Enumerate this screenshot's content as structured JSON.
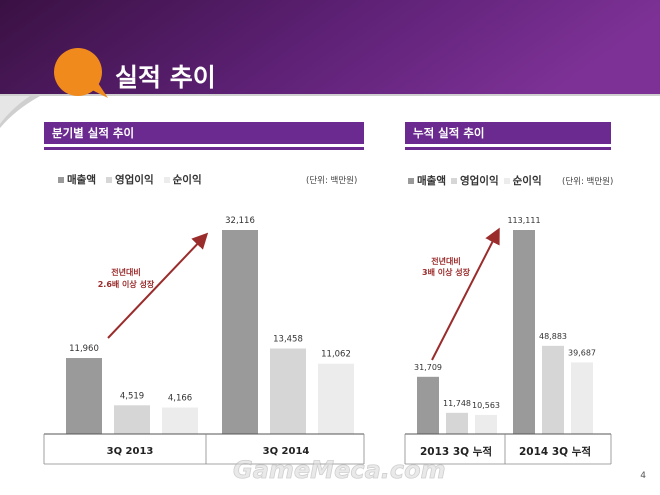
{
  "page": {
    "title": "실적 추이",
    "page_number": "4",
    "watermark": "GameMeca.com"
  },
  "colors": {
    "header_top": "#3d1245",
    "header_bottom": "#7a2f92",
    "accent_purple": "#6b2a8f",
    "orange": "#f08a1c",
    "arrow_red": "#9b2c2c",
    "revenue": "#9a9a9a",
    "operating_profit": "#d6d6d6",
    "net_profit": "#ececec"
  },
  "sections": [
    {
      "title": "분기별 실적 추이",
      "legend": [
        "매출액",
        "영업이익",
        "순이익"
      ],
      "unit": "(단위: 백만원)",
      "annotation": [
        "전년대비",
        "2.6배 이상 성장"
      ]
    },
    {
      "title": "누적 실적 추이",
      "legend": [
        "매출액",
        "영업이익",
        "순이익"
      ],
      "unit": "(단위: 백만원)",
      "annotation": [
        "전년대비",
        "3배 이상 성장"
      ]
    }
  ],
  "chart_data": [
    {
      "type": "bar",
      "title": "분기별 실적 추이",
      "categories": [
        "3Q 2013",
        "3Q 2014"
      ],
      "series": [
        {
          "name": "매출액",
          "values": [
            11960,
            32116
          ],
          "labels": [
            "11,960",
            "32,116"
          ]
        },
        {
          "name": "영업이익",
          "values": [
            4519,
            13458
          ],
          "labels": [
            "4,519",
            "13,458"
          ]
        },
        {
          "name": "순이익",
          "values": [
            4166,
            11062
          ],
          "labels": [
            "4,166",
            "11,062"
          ]
        }
      ],
      "ylim": [
        0,
        33000
      ],
      "xlabel": "",
      "ylabel": ""
    },
    {
      "type": "bar",
      "title": "누적 실적 추이",
      "categories": [
        "2013 3Q 누적",
        "2014 3Q 누적"
      ],
      "series": [
        {
          "name": "매출액",
          "values": [
            31709,
            113111
          ],
          "labels": [
            "31,709",
            "113,111"
          ]
        },
        {
          "name": "영업이익",
          "values": [
            11748,
            48883
          ],
          "labels": [
            "11,748",
            "48,883"
          ]
        },
        {
          "name": "순이익",
          "values": [
            10563,
            39687
          ],
          "labels": [
            "10,563",
            "39,687"
          ]
        }
      ],
      "ylim": [
        0,
        116000
      ],
      "xlabel": "",
      "ylabel": ""
    }
  ]
}
